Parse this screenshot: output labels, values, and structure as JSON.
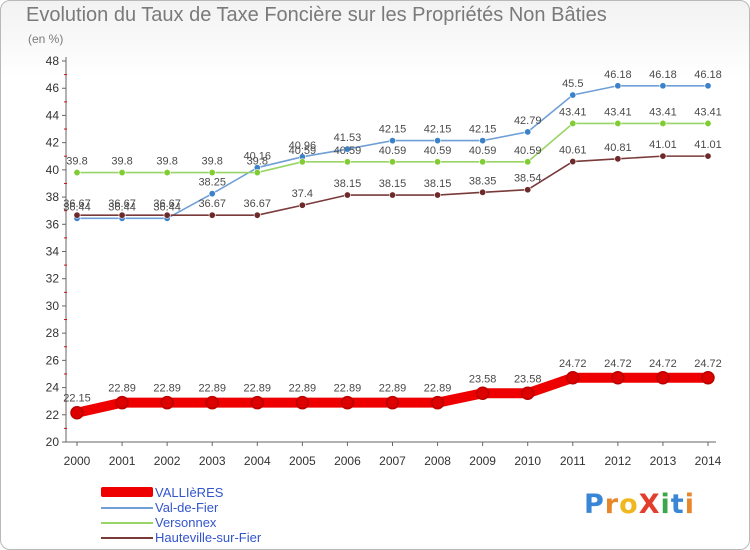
{
  "title": "Evolution du Taux de Taxe Foncière sur les Propriétés Non Bâties",
  "unit_label": "(en %)",
  "logo": {
    "text": "ProXiti",
    "letters": [
      {
        "ch": "P",
        "color": "#3a86d6"
      },
      {
        "ch": "r",
        "color": "#e8862a"
      },
      {
        "ch": "o",
        "color": "#f0b820"
      },
      {
        "ch": "X",
        "color": "#e23e2e"
      },
      {
        "ch": "i",
        "color": "#3aa84a"
      },
      {
        "ch": "t",
        "color": "#3a86d6"
      },
      {
        "ch": "i",
        "color": "#e8862a"
      }
    ]
  },
  "chart_data": {
    "type": "line",
    "title": "Evolution du Taux de Taxe Foncière sur les Propriétés Non Bâties",
    "ylabel": "(en %)",
    "xlabel": "",
    "x": [
      2000,
      2001,
      2002,
      2003,
      2004,
      2005,
      2006,
      2007,
      2008,
      2009,
      2010,
      2011,
      2012,
      2013,
      2014
    ],
    "ylim": [
      20,
      48
    ],
    "yticks": [
      20,
      22,
      24,
      26,
      28,
      30,
      32,
      34,
      36,
      38,
      40,
      42,
      44,
      46,
      48
    ],
    "legend_position": "bottom-left",
    "series": [
      {
        "name": "Val-de-Fier",
        "color": "#6f9fd6",
        "marker": "#3d82c9",
        "values": [
          36.44,
          36.44,
          36.44,
          38.25,
          40.16,
          40.96,
          41.53,
          42.15,
          42.15,
          42.15,
          42.79,
          45.5,
          46.18,
          46.18,
          46.18
        ],
        "labels": [
          "36.44",
          "36.44",
          "36.44",
          "38.25",
          "40.16",
          "40.96",
          "41.53",
          "42.15",
          "42.15",
          "42.15",
          "42.79",
          "45.5",
          "46.18",
          "46.18",
          "46.18"
        ]
      },
      {
        "name": "Versonnex",
        "color": "#99d466",
        "marker": "#7fcc33",
        "values": [
          39.8,
          39.8,
          39.8,
          39.8,
          39.8,
          40.59,
          40.59,
          40.59,
          40.59,
          40.59,
          40.59,
          43.41,
          43.41,
          43.41,
          43.41
        ],
        "labels": [
          "39.8",
          "39.8",
          "39.8",
          "39.8",
          "39.8",
          "40.59",
          "40.59",
          "40.59",
          "40.59",
          "40.59",
          "40.59",
          "43.41",
          "43.41",
          "43.41",
          "43.41"
        ]
      },
      {
        "name": "Hauteville-sur-Fier",
        "color": "#7a3a3a",
        "marker": "#6e2a2a",
        "values": [
          36.67,
          36.67,
          36.67,
          36.67,
          36.67,
          37.4,
          38.15,
          38.15,
          38.15,
          38.35,
          38.54,
          40.61,
          40.81,
          41.01,
          41.01
        ],
        "labels": [
          "36.67",
          "36.67",
          "36.67",
          "36.67",
          "36.67",
          "37.4",
          "38.15",
          "38.15",
          "38.15",
          "38.35",
          "38.54",
          "40.61",
          "40.81",
          "41.01",
          "41.01"
        ]
      },
      {
        "name": "VALLIèRES",
        "color": "#ee0000",
        "marker": "#dd0000",
        "values": [
          22.15,
          22.89,
          22.89,
          22.89,
          22.89,
          22.89,
          22.89,
          22.89,
          22.89,
          23.58,
          23.58,
          24.72,
          24.72,
          24.72,
          24.72
        ],
        "labels": [
          "22.15",
          "22.89",
          "22.89",
          "22.89",
          "22.89",
          "22.89",
          "22.89",
          "22.89",
          "22.89",
          "23.58",
          "23.58",
          "24.72",
          "24.72",
          "24.72",
          "24.72"
        ]
      }
    ]
  },
  "legend": [
    {
      "name": "VALLIèRES",
      "color": "#ee0000",
      "weight": "thick"
    },
    {
      "name": "Val-de-Fier",
      "color": "#6f9fd6",
      "weight": "thin"
    },
    {
      "name": "Versonnex",
      "color": "#99d466",
      "weight": "thin"
    },
    {
      "name": "Hauteville-sur-Fier",
      "color": "#7a3a3a",
      "weight": "thin"
    }
  ]
}
